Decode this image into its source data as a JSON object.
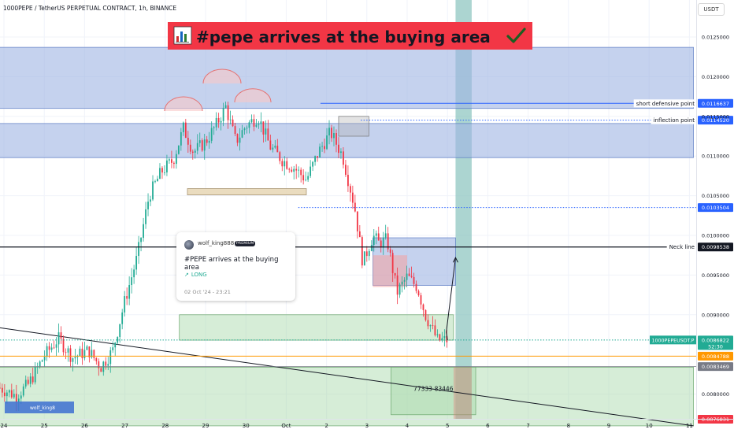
{
  "header": {
    "symbol_line": "1000PEPE / TetherUS PERPETUAL CONTRACT, 1h, BINANCE",
    "currency_button": "USDT"
  },
  "banner": {
    "icon": "bar-chart-icon",
    "text": "#pepe arrives at the buying area",
    "check_icon": "check-mark-icon",
    "background": "#f23645"
  },
  "idea_card": {
    "username": "wolf_king888",
    "badge": "PREMIUM",
    "title": "#PEPE arrives at the buying area",
    "position": "LONG",
    "position_icon": "pencil-icon",
    "date": "02 Oct '24 - 23:21"
  },
  "watermark": "wolf_king8",
  "colors": {
    "up": "#22ab94",
    "down": "#f23645",
    "zone_blue": "#9fb4e3",
    "zone_green": "#a5d6a7",
    "orange_line": "#ff9800",
    "blue_line": "#2962ff",
    "teal_column": "#7fbfb9"
  },
  "chart_data": {
    "type": "candlestick",
    "title": "1000PEPE / TetherUS PERPETUAL CONTRACT, 1h, BINANCE",
    "y_scale": "linear",
    "ylim": [
      0.0075,
      0.0129
    ],
    "x_ticks": [
      "24",
      "25",
      "26",
      "27",
      "28",
      "29",
      "30",
      "Oct",
      "2",
      "3",
      "4",
      "5",
      "6",
      "7",
      "8",
      "9",
      "10",
      "11"
    ],
    "y_ticks": [
      "0.0125000",
      "0.0120000",
      "0.0115000",
      "0.0110000",
      "0.0105000",
      "0.0100000",
      "0.0095000",
      "0.0090000",
      "0.0080000"
    ],
    "price_path": [
      {
        "day": 23.9,
        "price": 0.00808
      },
      {
        "day": 24.3,
        "price": 0.00798
      },
      {
        "day": 24.6,
        "price": 0.00812
      },
      {
        "day": 25.0,
        "price": 0.00848
      },
      {
        "day": 25.35,
        "price": 0.0087
      },
      {
        "day": 25.7,
        "price": 0.00846
      },
      {
        "day": 26.1,
        "price": 0.00855
      },
      {
        "day": 26.4,
        "price": 0.00834
      },
      {
        "day": 26.7,
        "price": 0.00855
      },
      {
        "day": 27.0,
        "price": 0.00918
      },
      {
        "day": 27.3,
        "price": 0.00972
      },
      {
        "day": 27.6,
        "price": 0.0105
      },
      {
        "day": 27.9,
        "price": 0.0108
      },
      {
        "day": 28.2,
        "price": 0.01095
      },
      {
        "day": 28.45,
        "price": 0.01135
      },
      {
        "day": 28.7,
        "price": 0.01105
      },
      {
        "day": 29.0,
        "price": 0.01118
      },
      {
        "day": 29.25,
        "price": 0.01138
      },
      {
        "day": 29.5,
        "price": 0.01162
      },
      {
        "day": 29.75,
        "price": 0.01118
      },
      {
        "day": 30.0,
        "price": 0.01138
      },
      {
        "day": 30.3,
        "price": 0.0115
      },
      {
        "day": 30.6,
        "price": 0.01112
      },
      {
        "day": 30.9,
        "price": 0.01095
      },
      {
        "day": 31.2,
        "price": 0.01085
      },
      {
        "day": 31.5,
        "price": 0.0107
      },
      {
        "day": 31.8,
        "price": 0.01105
      },
      {
        "day": 32.1,
        "price": 0.0113
      },
      {
        "day": 32.4,
        "price": 0.011
      },
      {
        "day": 32.7,
        "price": 0.01035
      },
      {
        "day": 32.9,
        "price": 0.00965
      },
      {
        "day": 33.15,
        "price": 0.01
      },
      {
        "day": 33.3,
        "price": 0.0099
      },
      {
        "day": 33.5,
        "price": 0.00995
      },
      {
        "day": 33.75,
        "price": 0.00928
      },
      {
        "day": 34.0,
        "price": 0.00948
      },
      {
        "day": 34.25,
        "price": 0.00935
      },
      {
        "day": 34.45,
        "price": 0.009
      },
      {
        "day": 34.75,
        "price": 0.00868
      },
      {
        "day": 35.0,
        "price": 0.00868
      }
    ],
    "projection_path": [
      {
        "day": 35.0,
        "price": 0.00868
      },
      {
        "day": 35.2,
        "price": 0.00972
      }
    ],
    "zones": [
      {
        "label": "",
        "day_from": 23.0,
        "day_to": 41.1,
        "price_low": 0.0116,
        "price_high": 0.01237,
        "color": "blue"
      },
      {
        "label": "",
        "day_from": 23.0,
        "day_to": 41.1,
        "price_low": 0.01098,
        "price_high": 0.01141,
        "color": "blue"
      },
      {
        "label": "",
        "day_from": 28.55,
        "day_to": 31.5,
        "price_low": 0.01051,
        "price_high": 0.01059,
        "color": "tan"
      },
      {
        "label": "",
        "day_from": 33.15,
        "day_to": 35.2,
        "price_low": 0.00937,
        "price_high": 0.00997,
        "color": "blue"
      },
      {
        "label": "",
        "day_from": 28.35,
        "day_to": 35.15,
        "price_low": 0.009,
        "price_high": 0.00868,
        "color": "green"
      },
      {
        "label": "",
        "day_from": 23.0,
        "day_to": 41.1,
        "price_low": 0.0076,
        "price_high": 0.00834,
        "color": "green"
      },
      {
        "label": "77333-83446",
        "day_from": 33.6,
        "day_to": 35.7,
        "price_low": 0.00774,
        "price_high": 0.00834,
        "color": "green"
      }
    ],
    "horizontal_levels": [
      {
        "label": "short defensive point",
        "value": "0.0116637",
        "price": 0.0116637,
        "style": "solid",
        "color": "#2962ff"
      },
      {
        "label": "inflection point",
        "value": "0.0114520",
        "price": 0.011452,
        "style": "dotted",
        "color": "#2962ff"
      },
      {
        "label": "",
        "value": "0.0103504",
        "price": 0.0103504,
        "style": "dotted",
        "color": "#2962ff"
      },
      {
        "label": "Neck line",
        "value": "0.0098538",
        "price": 0.0098538,
        "style": "solid",
        "color": "#131722"
      },
      {
        "label": "1000PEPEUSDT.P",
        "value": "0.0086822",
        "countdown": "52:30",
        "price": 0.0086822,
        "style": "dotted",
        "color": "#22ab94"
      },
      {
        "label": "",
        "value": "0.0084788",
        "price": 0.0084788,
        "style": "solid",
        "color": "#ff9800"
      },
      {
        "label": "",
        "value": "0.0083469",
        "price": 0.0083469,
        "style": "solid",
        "color": "#787b86"
      },
      {
        "label": "",
        "value": "0.0076831",
        "price": 0.0076831,
        "style": "solid",
        "color": "#f23645"
      }
    ],
    "trendline": {
      "from": {
        "day": 23.0,
        "price": 0.0089
      },
      "to": {
        "day": 41.1,
        "price": 0.0076
      }
    },
    "highlight_column": {
      "day_from": 35.2,
      "day_to": 35.6
    },
    "grid": true,
    "legend": "none"
  }
}
